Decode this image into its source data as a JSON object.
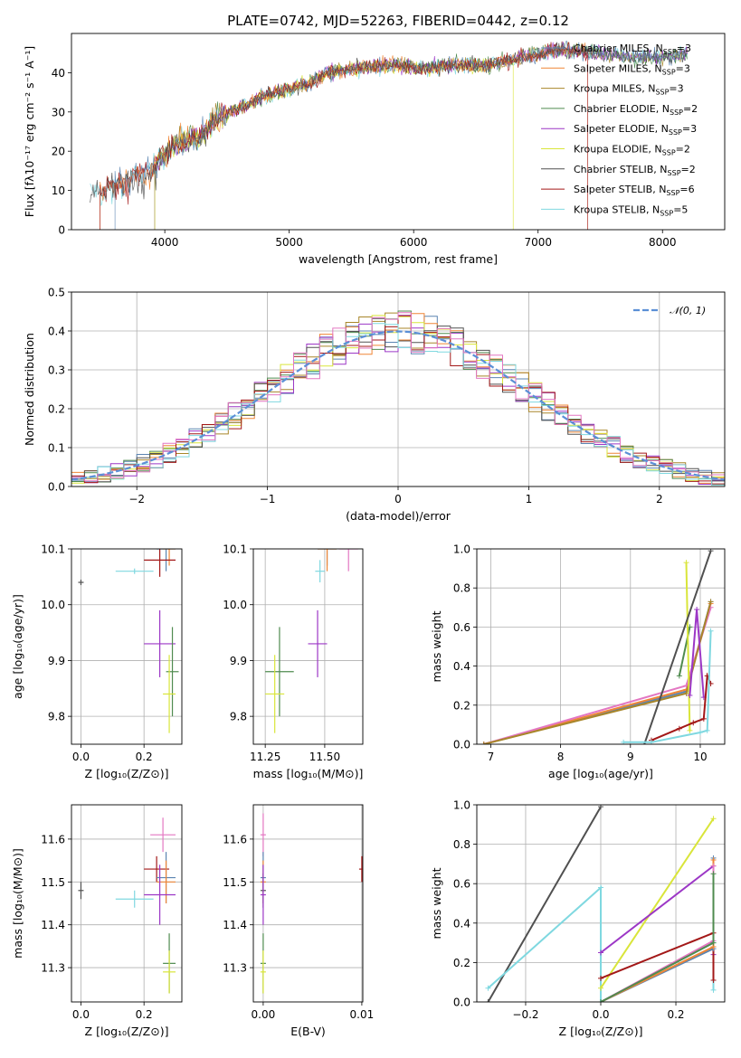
{
  "colors": {
    "chabrier_miles": "#5b84b1",
    "salpeter_miles": "#ef8636",
    "kroupa_miles": "#a8862a",
    "chabrier_elodie": "#4f8b4f",
    "salpeter_elodie": "#9c37c6",
    "kroupa_elodie": "#d9e53a",
    "chabrier_stelib": "#505050",
    "salpeter_stelib": "#a31818",
    "kroupa_stelib": "#7fd8e0",
    "pink": "#e377c2",
    "normal": "#5b8fd6"
  },
  "chart_data": [
    {
      "id": "spectrum",
      "type": "line",
      "title": "PLATE=0742, MJD=52263, FIBERID=0442, z=0.12",
      "xlabel": "wavelength [Angstrom, rest frame]",
      "ylabel": "Flux [fλ10⁻¹⁷ erg cm⁻² s⁻¹ A⁻¹]",
      "xlim": [
        3250,
        8500
      ],
      "ylim": [
        0,
        50
      ],
      "xticks": [
        4000,
        5000,
        6000,
        7000,
        8000
      ],
      "yticks": [
        0,
        10,
        20,
        30,
        40
      ],
      "grid": false,
      "legend_position": "top-right",
      "continuum_knots": [
        [
          3400,
          10
        ],
        [
          3500,
          9.5
        ],
        [
          3700,
          13
        ],
        [
          3900,
          15
        ],
        [
          3950,
          18
        ],
        [
          4100,
          22
        ],
        [
          4300,
          24
        ],
        [
          4400,
          28
        ],
        [
          4600,
          31
        ],
        [
          4800,
          34
        ],
        [
          5000,
          36
        ],
        [
          5150,
          37
        ],
        [
          5300,
          40
        ],
        [
          5500,
          41
        ],
        [
          5800,
          42
        ],
        [
          6100,
          41
        ],
        [
          6300,
          42
        ],
        [
          6600,
          42
        ],
        [
          6900,
          44
        ],
        [
          7200,
          46
        ],
        [
          7500,
          45
        ],
        [
          7800,
          44
        ],
        [
          8100,
          44
        ],
        [
          8200,
          45
        ]
      ],
      "series": [
        {
          "name": "Chabrier MILES, N",
          "sub": "SSP",
          "suffix": "=3"
        },
        {
          "name": "Salpeter MILES, N",
          "sub": "SSP",
          "suffix": "=3"
        },
        {
          "name": "Kroupa MILES, N",
          "sub": "SSP",
          "suffix": "=3"
        },
        {
          "name": "Chabrier ELODIE, N",
          "sub": "SSP",
          "suffix": "=2"
        },
        {
          "name": "Salpeter ELODIE, N",
          "sub": "SSP",
          "suffix": "=3"
        },
        {
          "name": "Kroupa ELODIE, N",
          "sub": "SSP",
          "suffix": "=2"
        },
        {
          "name": "Chabrier STELIB, N",
          "sub": "SSP",
          "suffix": "=2"
        },
        {
          "name": "Salpeter STELIB, N",
          "sub": "SSP",
          "suffix": "=6"
        },
        {
          "name": "Kroupa STELIB, N",
          "sub": "SSP",
          "suffix": "=5"
        }
      ]
    },
    {
      "id": "residuals",
      "type": "histogram",
      "xlabel": "(data-model)/error",
      "ylabel": "Normed distribution",
      "xlim": [
        -2.5,
        2.5
      ],
      "ylim": [
        0,
        0.5
      ],
      "xticks": [
        -2,
        -1,
        0,
        1,
        2
      ],
      "yticks": [
        0.0,
        0.1,
        0.2,
        0.3,
        0.4,
        0.5
      ],
      "grid": true,
      "legend_position": "top-right",
      "legend_label": "𝒩(0, 1)",
      "bin_width": 0.1
    },
    {
      "id": "age_vs_Z",
      "type": "scatter",
      "xlabel": "Z [log₁₀(Z/Z⊙)]",
      "ylabel": "age  [log₁₀(age/yr)]",
      "xlim": [
        -0.03,
        0.32
      ],
      "ylim": [
        9.75,
        10.1
      ],
      "xticks": [
        0.0,
        0.2
      ],
      "yticks": [
        9.8,
        9.9,
        10.0,
        10.1
      ],
      "grid": true,
      "points": [
        {
          "c": "chabrier_stelib",
          "x": 0.0,
          "y": 10.04,
          "xe": 0.0,
          "ye": 0.0
        },
        {
          "c": "kroupa_stelib",
          "x": 0.17,
          "y": 10.06,
          "xe": 0.06,
          "ye": 0.0
        },
        {
          "c": "chabrier_miles",
          "x": 0.27,
          "y": 10.1,
          "xe": 0.03,
          "ye": 0.04
        },
        {
          "c": "salpeter_miles",
          "x": 0.28,
          "y": 10.1,
          "xe": 0.02,
          "ye": 0.03
        },
        {
          "c": "salpeter_stelib",
          "x": 0.25,
          "y": 10.08,
          "xe": 0.05,
          "ye": 0.03
        },
        {
          "c": "salpeter_elodie",
          "x": 0.25,
          "y": 9.93,
          "xe": 0.05,
          "ye": 0.06
        },
        {
          "c": "chabrier_elodie",
          "x": 0.29,
          "y": 9.88,
          "xe": 0.02,
          "ye": 0.08
        },
        {
          "c": "kroupa_elodie",
          "x": 0.28,
          "y": 9.84,
          "xe": 0.02,
          "ye": 0.07
        }
      ]
    },
    {
      "id": "age_vs_mass",
      "type": "scatter",
      "xlabel": "mass [log₁₀(M/M⊙)]",
      "ylabel": "",
      "xlim": [
        11.2,
        11.66
      ],
      "ylim": [
        9.75,
        10.1
      ],
      "xticks": [
        11.25,
        11.5
      ],
      "yticks": [
        9.8,
        9.9,
        10.0,
        10.1
      ],
      "grid": true,
      "points": [
        {
          "c": "kroupa_stelib",
          "x": 11.48,
          "y": 10.06,
          "xe": 0.02,
          "ye": 0.02
        },
        {
          "c": "chabrier_miles",
          "x": 11.51,
          "y": 10.1,
          "xe": 0.04,
          "ye": 0.03
        },
        {
          "c": "salpeter_miles",
          "x": 11.51,
          "y": 10.1,
          "xe": 0.04,
          "ye": 0.04
        },
        {
          "c": "pink",
          "x": 11.6,
          "y": 10.1,
          "xe": 0.04,
          "ye": 0.04
        },
        {
          "c": "salpeter_elodie",
          "x": 11.47,
          "y": 9.93,
          "xe": 0.04,
          "ye": 0.06
        },
        {
          "c": "chabrier_elodie",
          "x": 11.31,
          "y": 9.88,
          "xe": 0.06,
          "ye": 0.08
        },
        {
          "c": "kroupa_elodie",
          "x": 11.29,
          "y": 9.84,
          "xe": 0.04,
          "ye": 0.07
        }
      ]
    },
    {
      "id": "weight_vs_age",
      "type": "line",
      "xlabel": "age  [log₁₀(age/yr)]",
      "ylabel": "mass weight",
      "xlim": [
        6.8,
        10.35
      ],
      "ylim": [
        0.0,
        1.0
      ],
      "xticks": [
        7,
        8,
        9,
        10
      ],
      "yticks": [
        0.0,
        0.2,
        0.4,
        0.6,
        0.8,
        1.0
      ],
      "grid": true,
      "series": [
        {
          "c": "chabrier_miles",
          "x": [
            6.9,
            9.8,
            10.15
          ],
          "y": [
            0.0,
            0.27,
            0.73
          ]
        },
        {
          "c": "salpeter_miles",
          "x": [
            6.9,
            9.8,
            10.15
          ],
          "y": [
            0.0,
            0.28,
            0.72
          ]
        },
        {
          "c": "pink",
          "x": [
            6.9,
            9.8,
            10.15
          ],
          "y": [
            0.0,
            0.3,
            0.7
          ]
        },
        {
          "c": "kroupa_miles",
          "x": [
            6.9,
            9.8,
            10.15
          ],
          "y": [
            0.0,
            0.26,
            0.73
          ]
        },
        {
          "c": "chabrier_elodie",
          "x": [
            9.7,
            9.85
          ],
          "y": [
            0.35,
            0.6
          ]
        },
        {
          "c": "kroupa_elodie",
          "x": [
            9.85,
            9.8
          ],
          "y": [
            0.07,
            0.93
          ]
        },
        {
          "c": "salpeter_elodie",
          "x": [
            9.85,
            9.95,
            10.05
          ],
          "y": [
            0.25,
            0.69,
            0.24
          ]
        },
        {
          "c": "chabrier_stelib",
          "x": [
            9.2,
            10.15
          ],
          "y": [
            0.0,
            0.99
          ]
        },
        {
          "c": "salpeter_stelib",
          "x": [
            9.3,
            9.7,
            9.9,
            10.05,
            10.1,
            10.15
          ],
          "y": [
            0.02,
            0.08,
            0.11,
            0.13,
            0.35,
            0.31
          ]
        },
        {
          "c": "kroupa_stelib",
          "x": [
            8.9,
            9.3,
            10.0,
            10.1,
            10.15
          ],
          "y": [
            0.01,
            0.01,
            0.06,
            0.07,
            0.58
          ]
        }
      ]
    },
    {
      "id": "mass_vs_Z",
      "type": "scatter",
      "xlabel": "Z [log₁₀(Z/Z⊙)]",
      "ylabel": "mass [log₁₀(M/M⊙)]",
      "xlim": [
        -0.03,
        0.32
      ],
      "ylim": [
        11.22,
        11.68
      ],
      "xticks": [
        0.0,
        0.2
      ],
      "yticks": [
        11.3,
        11.4,
        11.5,
        11.6
      ],
      "grid": true,
      "points": [
        {
          "c": "chabrier_stelib",
          "x": 0.0,
          "y": 11.48,
          "xe": 0.0,
          "ye": 0.02
        },
        {
          "c": "kroupa_stelib",
          "x": 0.17,
          "y": 11.46,
          "xe": 0.06,
          "ye": 0.02
        },
        {
          "c": "pink",
          "x": 0.26,
          "y": 11.61,
          "xe": 0.04,
          "ye": 0.04
        },
        {
          "c": "salpeter_stelib",
          "x": 0.24,
          "y": 11.53,
          "xe": 0.04,
          "ye": 0.03
        },
        {
          "c": "chabrier_miles",
          "x": 0.27,
          "y": 11.51,
          "xe": 0.03,
          "ye": 0.06
        },
        {
          "c": "salpeter_miles",
          "x": 0.27,
          "y": 11.5,
          "xe": 0.03,
          "ye": 0.05
        },
        {
          "c": "salpeter_elodie",
          "x": 0.25,
          "y": 11.47,
          "xe": 0.05,
          "ye": 0.07
        },
        {
          "c": "chabrier_elodie",
          "x": 0.28,
          "y": 11.31,
          "xe": 0.02,
          "ye": 0.07
        },
        {
          "c": "kroupa_elodie",
          "x": 0.28,
          "y": 11.29,
          "xe": 0.02,
          "ye": 0.05
        }
      ]
    },
    {
      "id": "mass_vs_ebv",
      "type": "scatter",
      "xlabel": "E(B-V)",
      "ylabel": "",
      "xlim": [
        -0.001,
        0.0101
      ],
      "ylim": [
        11.22,
        11.68
      ],
      "xticks": [
        0.0,
        0.01
      ],
      "yticks": [
        11.3,
        11.4,
        11.5,
        11.6
      ],
      "grid": true,
      "points": [
        {
          "c": "pink",
          "x": 0.0,
          "y": 11.61,
          "xe": 0.0,
          "ye": 0.05
        },
        {
          "c": "chabrier_miles",
          "x": 0.0,
          "y": 11.51,
          "xe": 0.0,
          "ye": 0.06
        },
        {
          "c": "salpeter_miles",
          "x": 0.0,
          "y": 11.5,
          "xe": 0.0,
          "ye": 0.05
        },
        {
          "c": "chabrier_stelib",
          "x": 0.0,
          "y": 11.48,
          "xe": 0.0,
          "ye": 0.04
        },
        {
          "c": "salpeter_elodie",
          "x": 0.0,
          "y": 11.47,
          "xe": 0.0,
          "ye": 0.07
        },
        {
          "c": "chabrier_elodie",
          "x": 0.0,
          "y": 11.31,
          "xe": 0.0,
          "ye": 0.07
        },
        {
          "c": "kroupa_elodie",
          "x": 0.0,
          "y": 11.29,
          "xe": 0.0,
          "ye": 0.05
        },
        {
          "c": "salpeter_stelib",
          "x": 0.01,
          "y": 11.53,
          "xe": 0.0,
          "ye": 0.03
        }
      ]
    },
    {
      "id": "weight_vs_Z",
      "type": "line",
      "xlabel": "Z [log₁₀(Z/Z⊙)]",
      "ylabel": "mass weight",
      "xlim": [
        -0.33,
        0.33
      ],
      "ylim": [
        0.0,
        1.0
      ],
      "xticks": [
        -0.2,
        0.0,
        0.2
      ],
      "yticks": [
        0.0,
        0.2,
        0.4,
        0.6,
        0.8,
        1.0
      ],
      "grid": true,
      "series": [
        {
          "c": "chabrier_stelib",
          "x": [
            -0.3,
            0.0
          ],
          "y": [
            0.0,
            0.99
          ]
        },
        {
          "c": "kroupa_stelib",
          "x": [
            -0.3,
            0.0,
            0.0,
            0.3,
            0.3
          ],
          "y": [
            0.07,
            0.58,
            0.0,
            0.3,
            0.06
          ]
        },
        {
          "c": "kroupa_elodie",
          "x": [
            0.0,
            0.3
          ],
          "y": [
            0.07,
            0.93
          ]
        },
        {
          "c": "salpeter_elodie",
          "x": [
            0.0,
            0.3,
            0.3
          ],
          "y": [
            0.25,
            0.69,
            0.24
          ]
        },
        {
          "c": "salpeter_stelib",
          "x": [
            0.0,
            0.3,
            0.3
          ],
          "y": [
            0.12,
            0.35,
            0.11
          ]
        },
        {
          "c": "chabrier_miles",
          "x": [
            0.0,
            0.3,
            0.3
          ],
          "y": [
            0.0,
            0.27,
            0.73
          ]
        },
        {
          "c": "salpeter_miles",
          "x": [
            0.0,
            0.3,
            0.3
          ],
          "y": [
            0.0,
            0.28,
            0.72
          ]
        },
        {
          "c": "pink",
          "x": [
            0.0,
            0.3,
            0.3
          ],
          "y": [
            0.0,
            0.31,
            0.69
          ]
        },
        {
          "c": "chabrier_elodie",
          "x": [
            0.0,
            0.3,
            0.3
          ],
          "y": [
            0.0,
            0.3,
            0.65
          ]
        }
      ]
    }
  ]
}
